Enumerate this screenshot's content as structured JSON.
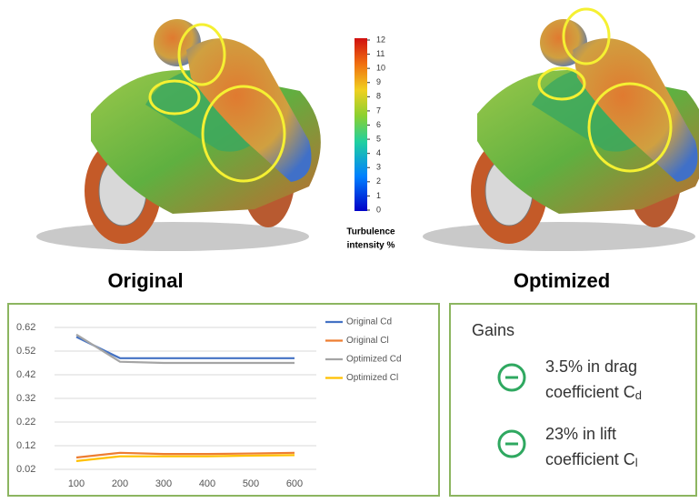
{
  "colorbar": {
    "ticks": [
      0,
      1,
      2,
      3,
      4,
      5,
      6,
      7,
      8,
      9,
      10,
      11,
      12
    ],
    "label": [
      "Turbulence",
      "intensity %"
    ]
  },
  "captions": [
    "Original",
    "Optimized"
  ],
  "chart_data": {
    "type": "line",
    "categories": [
      "100",
      "200",
      "300",
      "400",
      "500",
      "600"
    ],
    "series": [
      {
        "name": "Original Cd",
        "color": "#4472c4",
        "values": [
          0.58,
          0.49,
          0.49,
          0.49,
          0.49,
          0.49
        ]
      },
      {
        "name": "Original Cl",
        "color": "#ed7d31",
        "values": [
          0.07,
          0.09,
          0.085,
          0.085,
          0.087,
          0.09
        ]
      },
      {
        "name": "Optimized Cd",
        "color": "#a5a5a5",
        "values": [
          0.59,
          0.475,
          0.47,
          0.47,
          0.47,
          0.47
        ]
      },
      {
        "name": "Optimized Cl",
        "color": "#ffc000",
        "values": [
          0.055,
          0.075,
          0.075,
          0.075,
          0.078,
          0.08
        ]
      }
    ],
    "ylim": [
      0.02,
      0.62
    ],
    "yticks": [
      0.02,
      0.12,
      0.22,
      0.32,
      0.42,
      0.52,
      0.62
    ],
    "grid": true
  },
  "gains": {
    "title": "Gains",
    "items": [
      {
        "line1": "3.5% in drag",
        "line2": "coefficient C",
        "sub": "d"
      },
      {
        "line1": "23% in lift",
        "line2": "coefficient C",
        "sub": "l"
      }
    ]
  }
}
